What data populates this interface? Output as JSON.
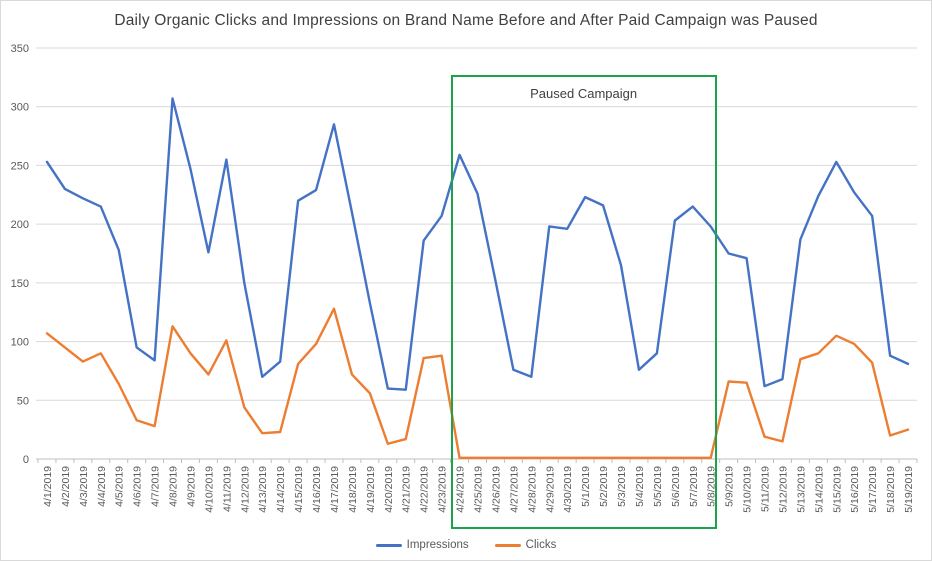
{
  "chart_data": {
    "type": "line",
    "title": "Daily Organic Clicks and Impressions on Brand Name Before and After Paid Campaign was Paused",
    "x": [
      "4/1/2019",
      "4/2/2019",
      "4/3/2019",
      "4/4/2019",
      "4/5/2019",
      "4/6/2019",
      "4/7/2019",
      "4/8/2019",
      "4/9/2019",
      "4/10/2019",
      "4/11/2019",
      "4/12/2019",
      "4/13/2019",
      "4/14/2019",
      "4/15/2019",
      "4/16/2019",
      "4/17/2019",
      "4/18/2019",
      "4/19/2019",
      "4/20/2019",
      "4/21/2019",
      "4/22/2019",
      "4/23/2019",
      "4/24/2019",
      "4/25/2019",
      "4/26/2019",
      "4/27/2019",
      "4/28/2019",
      "4/29/2019",
      "4/30/2019",
      "5/1/2019",
      "5/2/2019",
      "5/3/2019",
      "5/4/2019",
      "5/5/2019",
      "5/6/2019",
      "5/7/2019",
      "5/8/2019",
      "5/9/2019",
      "5/10/2019",
      "5/11/2019",
      "5/12/2019",
      "5/13/2019",
      "5/14/2019",
      "5/15/2019",
      "5/16/2019",
      "5/17/2019",
      "5/18/2019",
      "5/19/2019"
    ],
    "series": [
      {
        "name": "Impressions",
        "color": "#4472C4",
        "values": [
          253,
          230,
          222,
          215,
          178,
          95,
          84,
          307,
          247,
          176,
          255,
          150,
          70,
          83,
          220,
          229,
          285,
          210,
          133,
          60,
          59,
          186,
          207,
          259,
          226,
          152,
          76,
          70,
          198,
          196,
          223,
          216,
          165,
          76,
          90,
          203,
          215,
          198,
          175,
          171,
          62,
          68,
          187,
          224,
          253,
          227,
          207,
          88,
          81
        ]
      },
      {
        "name": "Clicks",
        "color": "#ED7D31",
        "values": [
          107,
          95,
          83,
          90,
          64,
          33,
          28,
          113,
          90,
          72,
          101,
          44,
          22,
          23,
          81,
          98,
          128,
          72,
          56,
          13,
          17,
          86,
          88,
          1,
          1,
          1,
          1,
          1,
          1,
          1,
          1,
          1,
          1,
          1,
          1,
          1,
          1,
          1,
          66,
          65,
          19,
          15,
          85,
          90,
          105,
          98,
          82,
          20,
          25
        ]
      }
    ],
    "ylim": [
      0,
      350
    ],
    "yticks": [
      0,
      50,
      100,
      150,
      200,
      250,
      300,
      350
    ],
    "grid": true,
    "legend_position": "bottom",
    "annotation": {
      "label": "Paused Campaign",
      "start_date": "4/24/2019",
      "end_date": "5/8/2019",
      "border_color": "#1AA34A"
    },
    "colors": {
      "grid": "#D9D9D9",
      "axis": "#BFBFBF",
      "tick_text": "#595959",
      "title_text": "#404040"
    }
  }
}
